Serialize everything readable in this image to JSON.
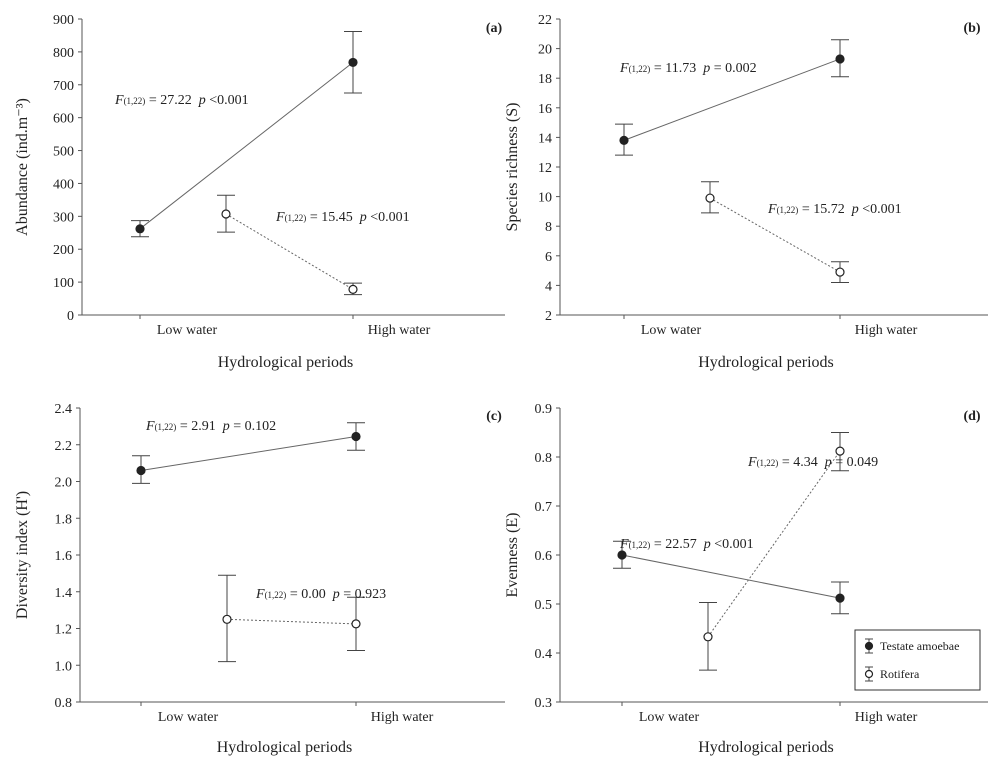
{
  "chart_data": [
    {
      "type": "line",
      "panel_label": "(a)",
      "categories": [
        "Low water",
        "High water"
      ],
      "xlabel": "Hydrological periods",
      "ylabel": "Abundance (ind.m⁻³)",
      "ylim": [
        0,
        900
      ],
      "yticks": [
        "0",
        "100",
        "200",
        "300",
        "400",
        "500",
        "600",
        "700",
        "800",
        "900"
      ],
      "series": [
        {
          "name": "Testate amoebae",
          "marker": "filled",
          "dash": false,
          "values": [
            262,
            768
          ],
          "err_low": [
            238,
            675
          ],
          "err_high": [
            287,
            862
          ]
        },
        {
          "name": "Rotifera",
          "marker": "open",
          "dash": true,
          "values": [
            307,
            78
          ],
          "err_low": [
            252,
            62
          ],
          "err_high": [
            364,
            97
          ]
        }
      ],
      "annotations": [
        {
          "f": "F",
          "sub": "(1,22)",
          "value": " = 27.22",
          "p": "p",
          "pval": " <0.001"
        },
        {
          "f": "F",
          "sub": "(1,22)",
          "value": " = 15.45",
          "p": "p",
          "pval": " <0.001"
        }
      ]
    },
    {
      "type": "line",
      "panel_label": "(b)",
      "categories": [
        "Low water",
        "High water"
      ],
      "xlabel": "Hydrological periods",
      "ylabel": "Species richness (S)",
      "ylim": [
        2,
        22
      ],
      "yticks": [
        "2",
        "4",
        "6",
        "8",
        "10",
        "12",
        "14",
        "16",
        "18",
        "20",
        "22"
      ],
      "series": [
        {
          "name": "Testate amoebae",
          "marker": "filled",
          "dash": false,
          "values": [
            13.8,
            19.3
          ],
          "err_low": [
            12.8,
            18.1
          ],
          "err_high": [
            14.9,
            20.6
          ]
        },
        {
          "name": "Rotifera",
          "marker": "open",
          "dash": true,
          "values": [
            9.9,
            4.9
          ],
          "err_low": [
            8.9,
            4.2
          ],
          "err_high": [
            11.0,
            5.6
          ]
        }
      ],
      "annotations": [
        {
          "f": "F",
          "sub": "(1,22)",
          "value": " = 11.73",
          "p": "p",
          "pval": " = 0.002"
        },
        {
          "f": "F",
          "sub": "(1,22)",
          "value": " = 15.72",
          "p": "p",
          "pval": " <0.001"
        }
      ]
    },
    {
      "type": "line",
      "panel_label": "(c)",
      "categories": [
        "Low water",
        "High water"
      ],
      "xlabel": "Hydrological periods",
      "ylabel": "Diversity index (H')",
      "ylim": [
        0.8,
        2.4
      ],
      "yticks": [
        "0.8",
        "1.0",
        "1.2",
        "1.4",
        "1.6",
        "1.8",
        "2.0",
        "2.2",
        "2.4"
      ],
      "series": [
        {
          "name": "Testate amoebae",
          "marker": "filled",
          "dash": false,
          "values": [
            2.06,
            2.245
          ],
          "err_low": [
            1.99,
            2.17
          ],
          "err_high": [
            2.14,
            2.32
          ]
        },
        {
          "name": "Rotifera",
          "marker": "open",
          "dash": true,
          "values": [
            1.25,
            1.225
          ],
          "err_low": [
            1.02,
            1.08
          ],
          "err_high": [
            1.49,
            1.37
          ]
        }
      ],
      "annotations": [
        {
          "f": "F",
          "sub": "(1,22)",
          "value": " = 2.91",
          "p": "p",
          "pval": " = 0.102"
        },
        {
          "f": "F",
          "sub": "(1,22)",
          "value": " = 0.00",
          "p": "p",
          "pval": " = 0.923"
        }
      ]
    },
    {
      "type": "line",
      "panel_label": "(d)",
      "categories": [
        "Low water",
        "High water"
      ],
      "xlabel": "Hydrological periods",
      "ylabel": "Evenness (E)",
      "ylim": [
        0.3,
        0.9
      ],
      "yticks": [
        "0.3",
        "0.4",
        "0.5",
        "0.6",
        "0.7",
        "0.8",
        "0.9"
      ],
      "series": [
        {
          "name": "Testate amoebae",
          "marker": "filled",
          "dash": false,
          "values": [
            0.6,
            0.512
          ],
          "err_low": [
            0.573,
            0.48
          ],
          "err_high": [
            0.628,
            0.545
          ]
        },
        {
          "name": "Rotifera",
          "marker": "open",
          "dash": true,
          "values": [
            0.433,
            0.812
          ],
          "err_low": [
            0.365,
            0.772
          ],
          "err_high": [
            0.503,
            0.85
          ]
        }
      ],
      "annotations": [
        {
          "f": "F",
          "sub": "(1,22)",
          "value": " = 4.34",
          "p": "p",
          "pval": " = 0.049"
        },
        {
          "f": "F",
          "sub": "(1,22)",
          "value": " = 22.57",
          "p": "p",
          "pval": " <0.001"
        }
      ],
      "legend": {
        "placement": "bottom-right",
        "items": [
          {
            "label": "Testate amoebae",
            "marker": "filled"
          },
          {
            "label": "Rotifera",
            "marker": "open"
          }
        ]
      }
    }
  ]
}
